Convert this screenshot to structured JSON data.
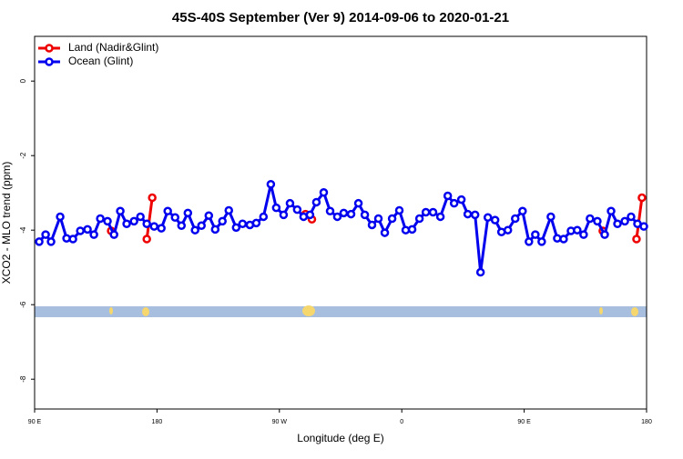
{
  "chart_data": {
    "type": "line",
    "title": "45S-40S September (Ver 9)   2014-09-06 to 2020-01-21",
    "x_label": "Longitude (deg E)",
    "y_label": "XCO2 - MLO trend (ppm)",
    "xlim": [
      90,
      540
    ],
    "ylim": [
      1.2,
      -8.8
    ],
    "xticks": [
      {
        "value": 90,
        "label": "90 E"
      },
      180,
      {
        "value": 270,
        "label": "90 W"
      },
      {
        "value": 360,
        "label": "0"
      },
      {
        "value": 450,
        "label": "90 E"
      },
      {
        "value": 540,
        "label": "180"
      }
    ],
    "yticks": [
      0,
      -2,
      -4,
      -6,
      -8
    ],
    "legend": "top-left",
    "series": [
      {
        "name": "Land (Nadir&Glint)",
        "color": "#ee0000",
        "x": [
          146.3,
          null,
          172.5,
          176.5,
          null,
          289.2,
          293.9,
          null,
          507.8,
          null,
          532.6,
          536.6
        ],
        "values": [
          -4.02,
          null,
          -4.24,
          -3.13,
          null,
          -3.57,
          -3.71,
          null,
          -4.02,
          null,
          -4.24,
          -3.13
        ]
      },
      {
        "name": "Ocean (Glint)",
        "color": "#0000ee",
        "x": [
          93.4,
          98.1,
          102.1,
          108.8,
          113.5,
          118.2,
          123.6,
          128.9,
          133.6,
          138.3,
          143.6,
          148.4,
          153.0,
          157.7,
          163.1,
          167.8,
          172.5,
          177.9,
          183.2,
          187.9,
          193.3,
          198.0,
          202.7,
          208.0,
          212.7,
          218.1,
          222.8,
          228.1,
          232.8,
          238.2,
          242.9,
          248.3,
          253.0,
          258.3,
          263.7,
          267.7,
          273.1,
          277.8,
          283.1,
          287.8,
          292.5,
          297.2,
          302.6,
          307.3,
          312.6,
          317.3,
          322.7,
          328.1,
          332.8,
          338.1,
          342.8,
          347.5,
          352.9,
          358.2,
          362.9,
          367.6,
          373.0,
          377.7,
          383.0,
          388.4,
          393.8,
          398.5,
          403.8,
          408.5,
          413.9,
          417.9,
          423.3,
          428.6,
          433.3,
          438.0,
          443.4,
          448.8,
          453.5,
          458.2,
          462.9,
          469.6,
          474.3,
          479.0,
          484.4,
          489.0,
          493.7,
          498.4,
          503.8,
          509.2,
          513.9,
          518.6,
          524.0,
          528.6,
          533.3,
          538.0
        ],
        "values": [
          -4.31,
          -4.12,
          -4.31,
          -3.64,
          -4.22,
          -4.24,
          -4.02,
          -3.98,
          -4.12,
          -3.69,
          -3.76,
          -4.12,
          -3.49,
          -3.83,
          -3.76,
          -3.64,
          -3.83,
          -3.9,
          -3.95,
          -3.49,
          -3.66,
          -3.88,
          -3.54,
          -4.0,
          -3.88,
          -3.61,
          -3.98,
          -3.76,
          -3.47,
          -3.93,
          -3.83,
          -3.86,
          -3.81,
          -3.64,
          -2.77,
          -3.4,
          -3.59,
          -3.28,
          -3.45,
          -3.64,
          -3.59,
          -3.25,
          -2.99,
          -3.49,
          -3.64,
          -3.54,
          -3.57,
          -3.28,
          -3.59,
          -3.86,
          -3.69,
          -4.07,
          -3.69,
          -3.47,
          -4.0,
          -3.98,
          -3.69,
          -3.52,
          -3.52,
          -3.64,
          -3.08,
          -3.28,
          -3.18,
          -3.57,
          -3.59,
          -5.13,
          -3.66,
          -3.73,
          -4.05,
          -4.0,
          -3.69,
          -3.49,
          -4.31,
          -4.12,
          -4.31,
          -3.64,
          -4.22,
          -4.24,
          -4.02,
          -4.0,
          -4.12,
          -3.69,
          -3.76,
          -4.12,
          -3.49,
          -3.83,
          -3.76,
          -3.64,
          -3.83,
          -3.9
        ]
      }
    ]
  }
}
